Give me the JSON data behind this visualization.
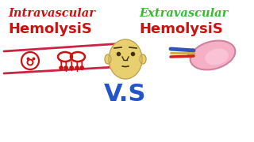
{
  "bg_color": "#ffffff",
  "title_left_line1": "Intravascular",
  "title_left_line2": "HemolysiS",
  "title_right_line1": "Extravascular",
  "title_right_line2": "HemolysiS",
  "vs_text": "V.S",
  "title_left_italic_color": "#cc1111",
  "title_left_bold_color": "#cc1111",
  "title_right_line1_color": "#33bb33",
  "title_right_line2_color": "#cc1111",
  "vs_color": "#2255cc",
  "vessel_color": "#cc2244",
  "rbc_color": "#cc1111",
  "face_skin": "#e8d070",
  "face_dark": "#443300",
  "spleen_fill": "#f5b0c5",
  "spleen_edge": "#d080a0",
  "vessel_blue": "#3355bb",
  "vessel_red": "#cc2222",
  "vessel_tan": "#ccaa44",
  "figsize": [
    3.2,
    1.8
  ],
  "dpi": 100
}
